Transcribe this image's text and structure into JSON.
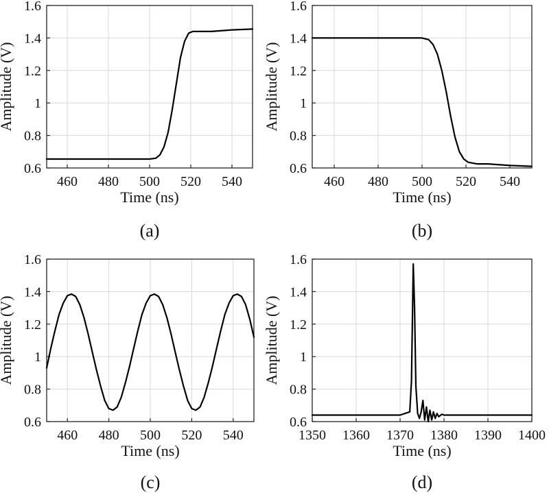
{
  "chart_data": [
    {
      "type": "line",
      "caption": "(a)",
      "xlabel": "Time (ns)",
      "ylabel": "Amplitude (V)",
      "xlim": [
        450,
        550
      ],
      "ylim": [
        0.6,
        1.6
      ],
      "xticks": [
        460,
        480,
        500,
        520,
        540
      ],
      "yticks": [
        0.6,
        0.8,
        1,
        1.2,
        1.4,
        1.6
      ],
      "ytick_labels": [
        "0.6",
        "0.8",
        "1",
        "1.2",
        "1.4",
        "1.6"
      ],
      "grid": true,
      "color": "#000000",
      "x": [
        450,
        470,
        490,
        500,
        503,
        505,
        507,
        509,
        511,
        513,
        515,
        517,
        519,
        521,
        525,
        530,
        540,
        550
      ],
      "y": [
        0.655,
        0.655,
        0.655,
        0.655,
        0.66,
        0.68,
        0.73,
        0.82,
        0.96,
        1.12,
        1.28,
        1.38,
        1.43,
        1.44,
        1.44,
        1.44,
        1.45,
        1.455
      ]
    },
    {
      "type": "line",
      "caption": "(b)",
      "xlabel": "Time (ns)",
      "ylabel": "Amplitude (V)",
      "xlim": [
        450,
        550
      ],
      "ylim": [
        0.6,
        1.6
      ],
      "xticks": [
        460,
        480,
        500,
        520,
        540
      ],
      "yticks": [
        0.6,
        0.8,
        1,
        1.2,
        1.4,
        1.6
      ],
      "ytick_labels": [
        "0.6",
        "0.8",
        "1",
        "1.2",
        "1.4",
        "1.6"
      ],
      "grid": true,
      "color": "#000000",
      "x": [
        450,
        470,
        490,
        500,
        503,
        505,
        507,
        509,
        511,
        513,
        515,
        517,
        519,
        521,
        525,
        530,
        540,
        550
      ],
      "y": [
        1.4,
        1.4,
        1.4,
        1.4,
        1.39,
        1.36,
        1.3,
        1.2,
        1.07,
        0.92,
        0.79,
        0.7,
        0.655,
        0.635,
        0.625,
        0.625,
        0.615,
        0.61
      ]
    },
    {
      "type": "line",
      "caption": "(c)",
      "xlabel": "Time (ns)",
      "ylabel": "Amplitude (V)",
      "xlim": [
        450,
        550
      ],
      "ylim": [
        0.6,
        1.6
      ],
      "xticks": [
        460,
        480,
        500,
        520,
        540
      ],
      "yticks": [
        0.6,
        0.8,
        1,
        1.2,
        1.4,
        1.6
      ],
      "ytick_labels": [
        "0.6",
        "0.8",
        "1",
        "1.2",
        "1.4",
        "1.6"
      ],
      "grid": true,
      "color": "#000000",
      "x": [
        450,
        452,
        454,
        456,
        458,
        460,
        462,
        464,
        466,
        468,
        470,
        472,
        474,
        476,
        478,
        480,
        482,
        484,
        486,
        488,
        490,
        492,
        494,
        496,
        498,
        500,
        502,
        504,
        506,
        508,
        510,
        512,
        514,
        516,
        518,
        520,
        522,
        524,
        526,
        528,
        530,
        532,
        534,
        536,
        538,
        540,
        542,
        544,
        546,
        548,
        550
      ],
      "y": [
        0.93,
        1.05,
        1.16,
        1.26,
        1.33,
        1.375,
        1.385,
        1.37,
        1.32,
        1.24,
        1.14,
        1.03,
        0.92,
        0.82,
        0.73,
        0.68,
        0.67,
        0.69,
        0.75,
        0.84,
        0.94,
        1.05,
        1.16,
        1.26,
        1.33,
        1.375,
        1.385,
        1.37,
        1.32,
        1.24,
        1.14,
        1.03,
        0.92,
        0.82,
        0.73,
        0.68,
        0.67,
        0.69,
        0.75,
        0.84,
        0.94,
        1.05,
        1.16,
        1.26,
        1.33,
        1.375,
        1.385,
        1.37,
        1.32,
        1.23,
        1.12
      ]
    },
    {
      "type": "line",
      "caption": "(d)",
      "xlabel": "Time (ns)",
      "ylabel": "Amplitude (V)",
      "xlim": [
        1350,
        1400
      ],
      "ylim": [
        0.6,
        1.6
      ],
      "xticks": [
        1350,
        1360,
        1370,
        1380,
        1390,
        1400
      ],
      "yticks": [
        0.6,
        0.8,
        1,
        1.2,
        1.4,
        1.6
      ],
      "ytick_labels": [
        "0.6",
        "0.8",
        "1",
        "1.2",
        "1.4",
        "1.6"
      ],
      "grid": true,
      "color": "#000000",
      "x": [
        1350,
        1360,
        1370,
        1372.2,
        1372.6,
        1373,
        1373.3,
        1373.6,
        1374,
        1374.4,
        1374.8,
        1375.2,
        1375.6,
        1376,
        1376.4,
        1376.8,
        1377.2,
        1377.6,
        1378,
        1378.4,
        1378.8,
        1379.5,
        1380,
        1390,
        1400
      ],
      "y": [
        0.64,
        0.64,
        0.64,
        0.66,
        0.85,
        1.57,
        1.3,
        0.82,
        0.65,
        0.62,
        0.66,
        0.73,
        0.61,
        0.69,
        0.6,
        0.67,
        0.61,
        0.66,
        0.62,
        0.65,
        0.63,
        0.645,
        0.64,
        0.64,
        0.64
      ]
    }
  ]
}
